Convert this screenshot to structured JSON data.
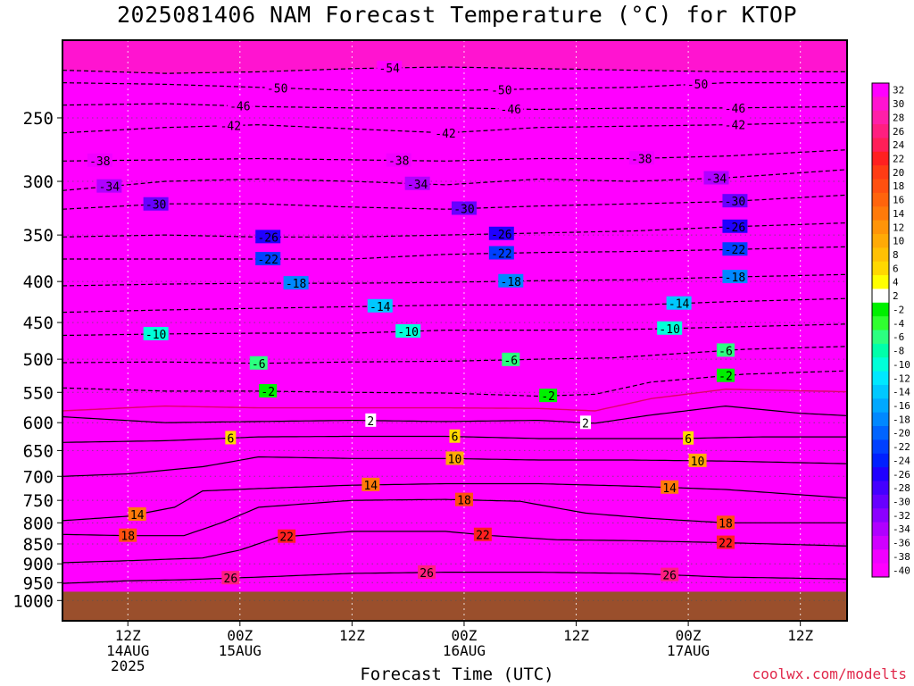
{
  "title": "2025081406 NAM Forecast Temperature (°C) for KTOP",
  "credit": "coolwx.com/modelts",
  "chart_data": {
    "type": "heatmap",
    "title": "2025081406 NAM Forecast Temperature (°C) for KTOP",
    "xlabel": "Forecast Time (UTC)",
    "ylabel": "",
    "x_range_hours": [
      -1,
      83
    ],
    "y_range_hpa": [
      1060,
      200
    ],
    "y_scale": "log",
    "grid": "dotted",
    "y_ticks": [
      250,
      300,
      350,
      400,
      450,
      500,
      550,
      600,
      650,
      700,
      750,
      800,
      850,
      900,
      950,
      1000
    ],
    "x_ticks": [
      {
        "hour": 6,
        "l1": "12Z",
        "l2": "14AUG",
        "l3": "2025"
      },
      {
        "hour": 18,
        "l1": "00Z",
        "l2": "15AUG",
        "l3": ""
      },
      {
        "hour": 30,
        "l1": "12Z",
        "l2": "",
        "l3": ""
      },
      {
        "hour": 42,
        "l1": "00Z",
        "l2": "16AUG",
        "l3": ""
      },
      {
        "hour": 54,
        "l1": "12Z",
        "l2": "",
        "l3": ""
      },
      {
        "hour": 66,
        "l1": "00Z",
        "l2": "17AUG",
        "l3": ""
      },
      {
        "hour": 78,
        "l1": "12Z",
        "l2": "",
        "l3": ""
      }
    ],
    "surface_hpa": 975,
    "surface_color": "#9a4f2c",
    "colorbar": {
      "labels": [
        32,
        30,
        28,
        26,
        24,
        22,
        20,
        18,
        16,
        14,
        12,
        10,
        8,
        6,
        4,
        2,
        -2,
        -4,
        -6,
        -8,
        -10,
        -12,
        -14,
        -16,
        -18,
        -20,
        -22,
        -24,
        -26,
        -28,
        -30,
        -32,
        -34,
        -36,
        -38,
        -40
      ],
      "colors": [
        "#ff00ff",
        "#ff14d0",
        "#ff1fa8",
        "#ff1f80",
        "#ff1f58",
        "#ff2020",
        "#ff3c14",
        "#ff5010",
        "#ff640c",
        "#ff7a0a",
        "#ff9408",
        "#ffaa06",
        "#ffc004",
        "#ffd800",
        "#ffff00",
        "#ffffff",
        "#00f000",
        "#30ff30",
        "#2cff80",
        "#00ffaa",
        "#00ffd8",
        "#00e8ff",
        "#00c8ff",
        "#00a8ff",
        "#0088ff",
        "#0064ff",
        "#0040ff",
        "#0020ff",
        "#2000ff",
        "#4400ff",
        "#6800ff",
        "#8c00ff",
        "#b000ff",
        "#d000ff",
        "#f000ff",
        "#ff00ff"
      ]
    },
    "isotherms": [
      {
        "t": -54,
        "dash": true,
        "p": [
          [
            -1,
            218
          ],
          [
            10,
            220
          ],
          [
            20,
            219
          ],
          [
            30,
            217
          ],
          [
            40,
            216
          ],
          [
            50,
            217
          ],
          [
            60,
            218
          ],
          [
            70,
            219
          ],
          [
            83,
            219
          ]
        ],
        "label_h": 34
      },
      {
        "t": -50,
        "dash": true,
        "p": [
          [
            -1,
            226
          ],
          [
            10,
            227
          ],
          [
            20,
            229
          ],
          [
            30,
            231
          ],
          [
            42,
            231
          ],
          [
            50,
            230
          ],
          [
            60,
            229
          ],
          [
            70,
            226
          ],
          [
            83,
            226
          ]
        ],
        "label_h": [
          22,
          46,
          67
        ]
      },
      {
        "t": -46,
        "dash": true,
        "p": [
          [
            -1,
            241
          ],
          [
            10,
            240
          ],
          [
            20,
            242
          ],
          [
            30,
            243
          ],
          [
            42,
            243
          ],
          [
            50,
            244
          ],
          [
            60,
            243
          ],
          [
            70,
            243
          ],
          [
            83,
            242
          ]
        ],
        "label_h": [
          18,
          47,
          71
        ]
      },
      {
        "t": -42,
        "dash": true,
        "p": [
          [
            -1,
            261
          ],
          [
            10,
            257
          ],
          [
            20,
            255
          ],
          [
            30,
            258
          ],
          [
            40,
            261
          ],
          [
            50,
            257
          ],
          [
            60,
            256
          ],
          [
            70,
            255
          ],
          [
            83,
            253
          ]
        ],
        "label_h": [
          17,
          40,
          71
        ]
      },
      {
        "t": -38,
        "dash": true,
        "p": [
          [
            -1,
            283
          ],
          [
            10,
            282
          ],
          [
            20,
            281
          ],
          [
            30,
            282
          ],
          [
            40,
            283
          ],
          [
            50,
            281
          ],
          [
            60,
            281
          ],
          [
            70,
            279
          ],
          [
            83,
            274
          ]
        ],
        "label_h": [
          3,
          35,
          61
        ]
      },
      {
        "t": -34,
        "dash": true,
        "p": [
          [
            -1,
            308
          ],
          [
            10,
            300
          ],
          [
            20,
            298
          ],
          [
            30,
            300
          ],
          [
            40,
            303
          ],
          [
            50,
            298
          ],
          [
            60,
            300
          ],
          [
            70,
            297
          ],
          [
            83,
            290
          ]
        ],
        "label_h": [
          4,
          37,
          69
        ]
      },
      {
        "t": -30,
        "dash": true,
        "p": [
          [
            -1,
            325
          ],
          [
            10,
            320
          ],
          [
            20,
            320
          ],
          [
            30,
            323
          ],
          [
            40,
            325
          ],
          [
            50,
            322
          ],
          [
            60,
            320
          ],
          [
            70,
            318
          ],
          [
            83,
            312
          ]
        ],
        "label_h": [
          9,
          42,
          71
        ]
      },
      {
        "t": -26,
        "dash": true,
        "p": [
          [
            -1,
            352
          ],
          [
            10,
            350
          ],
          [
            20,
            352
          ],
          [
            30,
            352
          ],
          [
            40,
            350
          ],
          [
            50,
            348
          ],
          [
            60,
            346
          ],
          [
            70,
            342
          ],
          [
            83,
            338
          ]
        ],
        "label_h": [
          21,
          46,
          71
        ]
      },
      {
        "t": -22,
        "dash": true,
        "p": [
          [
            -1,
            375
          ],
          [
            10,
            375
          ],
          [
            20,
            375
          ],
          [
            30,
            375
          ],
          [
            40,
            370
          ],
          [
            50,
            368
          ],
          [
            60,
            367
          ],
          [
            70,
            365
          ],
          [
            83,
            362
          ]
        ],
        "label_h": [
          21,
          46,
          71
        ]
      },
      {
        "t": -18,
        "dash": true,
        "p": [
          [
            -1,
            405
          ],
          [
            10,
            403
          ],
          [
            20,
            402
          ],
          [
            30,
            402
          ],
          [
            40,
            401
          ],
          [
            50,
            399
          ],
          [
            60,
            398
          ],
          [
            70,
            395
          ],
          [
            83,
            392
          ]
        ],
        "label_h": [
          24,
          47,
          71
        ]
      },
      {
        "t": -14,
        "dash": true,
        "p": [
          [
            -1,
            437
          ],
          [
            10,
            434
          ],
          [
            20,
            432
          ],
          [
            30,
            430
          ],
          [
            40,
            428
          ],
          [
            50,
            428
          ],
          [
            60,
            428
          ],
          [
            70,
            424
          ],
          [
            83,
            420
          ]
        ],
        "label_h": [
          33,
          65
        ]
      },
      {
        "t": -10,
        "dash": true,
        "p": [
          [
            -1,
            467
          ],
          [
            10,
            465
          ],
          [
            20,
            464
          ],
          [
            30,
            464
          ],
          [
            40,
            460
          ],
          [
            50,
            460
          ],
          [
            60,
            459
          ],
          [
            70,
            456
          ],
          [
            83,
            452
          ]
        ],
        "label_h": [
          9,
          36,
          64
        ]
      },
      {
        "t": -6,
        "dash": true,
        "p": [
          [
            -1,
            505
          ],
          [
            10,
            504
          ],
          [
            20,
            506
          ],
          [
            30,
            504
          ],
          [
            40,
            503
          ],
          [
            50,
            500
          ],
          [
            58,
            498
          ],
          [
            65,
            492
          ],
          [
            72,
            486
          ],
          [
            83,
            482
          ]
        ],
        "label_h": [
          20,
          47,
          70
        ]
      },
      {
        "t": -2,
        "dash": true,
        "p": [
          [
            -1,
            543
          ],
          [
            10,
            548
          ],
          [
            20,
            548
          ],
          [
            30,
            550
          ],
          [
            40,
            551
          ],
          [
            50,
            556
          ],
          [
            56,
            553
          ],
          [
            62,
            534
          ],
          [
            72,
            522
          ],
          [
            83,
            517
          ]
        ],
        "label_h": [
          21,
          51,
          70
        ]
      },
      {
        "t": 0,
        "dash": false,
        "color": "#e0006a",
        "p": [
          [
            -1,
            580
          ],
          [
            10,
            572
          ],
          [
            20,
            575
          ],
          [
            30,
            575
          ],
          [
            40,
            575
          ],
          [
            50,
            576
          ],
          [
            56,
            580
          ],
          [
            62,
            560
          ],
          [
            70,
            545
          ],
          [
            83,
            549
          ]
        ],
        "label_h": []
      },
      {
        "t": 2,
        "dash": false,
        "p": [
          [
            -1,
            590
          ],
          [
            10,
            600
          ],
          [
            20,
            598
          ],
          [
            30,
            596
          ],
          [
            40,
            598
          ],
          [
            50,
            596
          ],
          [
            56,
            601
          ],
          [
            62,
            587
          ],
          [
            70,
            572
          ],
          [
            78,
            584
          ],
          [
            83,
            588
          ]
        ],
        "label_h": [
          32,
          55
        ]
      },
      {
        "t": 6,
        "dash": false,
        "p": [
          [
            -1,
            635
          ],
          [
            10,
            632
          ],
          [
            20,
            625
          ],
          [
            30,
            624
          ],
          [
            40,
            624
          ],
          [
            50,
            628
          ],
          [
            58,
            628
          ],
          [
            65,
            628
          ],
          [
            74,
            625
          ],
          [
            83,
            625
          ]
        ],
        "label_h": [
          17,
          41,
          66
        ]
      },
      {
        "t": 10,
        "dash": false,
        "p": [
          [
            -1,
            700
          ],
          [
            6,
            695
          ],
          [
            14,
            681
          ],
          [
            20,
            662
          ],
          [
            30,
            665
          ],
          [
            40,
            665
          ],
          [
            50,
            668
          ],
          [
            60,
            668
          ],
          [
            70,
            670
          ],
          [
            83,
            675
          ]
        ],
        "label_h": [
          41,
          67
        ]
      },
      {
        "t": 14,
        "dash": false,
        "p": [
          [
            -1,
            795
          ],
          [
            6,
            785
          ],
          [
            11,
            765
          ],
          [
            14,
            730
          ],
          [
            20,
            725
          ],
          [
            30,
            718
          ],
          [
            40,
            715
          ],
          [
            50,
            715
          ],
          [
            60,
            720
          ],
          [
            70,
            727
          ],
          [
            83,
            745
          ]
        ],
        "label_h": [
          7,
          32,
          64
        ]
      },
      {
        "t": 18,
        "dash": false,
        "p": [
          [
            -1,
            827
          ],
          [
            6,
            830
          ],
          [
            12,
            830
          ],
          [
            16,
            800
          ],
          [
            20,
            765
          ],
          [
            30,
            750
          ],
          [
            40,
            748
          ],
          [
            48,
            752
          ],
          [
            55,
            778
          ],
          [
            62,
            790
          ],
          [
            70,
            800
          ],
          [
            83,
            800
          ]
        ],
        "label_h": [
          6,
          42,
          70
        ]
      },
      {
        "t": 22,
        "dash": false,
        "p": [
          [
            -1,
            897
          ],
          [
            6,
            892
          ],
          [
            14,
            885
          ],
          [
            18,
            865
          ],
          [
            22,
            834
          ],
          [
            30,
            820
          ],
          [
            40,
            820
          ],
          [
            45,
            830
          ],
          [
            52,
            840
          ],
          [
            60,
            842
          ],
          [
            70,
            847
          ],
          [
            83,
            855
          ]
        ],
        "label_h": [
          23,
          44,
          70
        ]
      },
      {
        "t": 26,
        "dash": false,
        "p": [
          [
            -1,
            952
          ],
          [
            6,
            945
          ],
          [
            12,
            942
          ],
          [
            20,
            935
          ],
          [
            30,
            925
          ],
          [
            40,
            922
          ],
          [
            50,
            922
          ],
          [
            60,
            925
          ],
          [
            70,
            935
          ],
          [
            83,
            940
          ]
        ],
        "label_h": [
          17,
          38,
          64
        ]
      }
    ]
  }
}
